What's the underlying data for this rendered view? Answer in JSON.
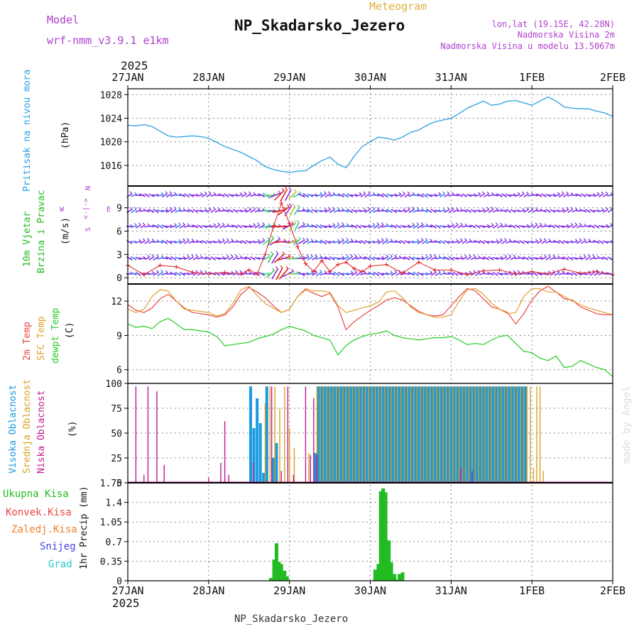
{
  "header": {
    "model_label": "Model",
    "model_name": "wrf-nmm_v3.9.1  e1km",
    "meteogram_label": "Meteogram",
    "station_title": "NP_Skadarsko_Jezero",
    "coords": "lon,lat (19.15E, 42.28N)",
    "elevation": "Nadmorska Visina 2m",
    "model_elevation": "Nadmorska Visina u modelu 13.5067m",
    "watermark": "made by Angel",
    "footer_station": "NP_Skadarsko_Jezero"
  },
  "colors": {
    "pressure": "#2aa0e0",
    "wind_label": "#22bb22",
    "temp_2m": "#ee4444",
    "temp_sfc": "#e0a030",
    "dewpoint": "#22cc22",
    "cloud_high": "#1a9ae0",
    "cloud_mid": "#d8a020",
    "cloud_low": "#c01890",
    "precip_total": "#22bb22",
    "gust_marker": "#e02020",
    "compass": "#b040d0",
    "grid": "#888888",
    "header_purple": "#b040d0",
    "header_gold": "#e0b040"
  },
  "time_axis": {
    "year": "2025",
    "ticks": [
      "27JAN",
      "28JAN",
      "29JAN",
      "30JAN",
      "31JAN",
      "1FEB",
      "2FEB"
    ]
  },
  "chart_data": [
    {
      "type": "line",
      "name": "pressure",
      "ylabel_1": "Pritisak na nivou mora",
      "ylabel_2": "(hPa)",
      "ylim": [
        1012.5,
        1029
      ],
      "yticks": [
        1016,
        1020,
        1024,
        1028
      ],
      "x_days": [
        0,
        0.1,
        0.2,
        0.3,
        0.4,
        0.5,
        0.6,
        0.7,
        0.8,
        0.9,
        1.0,
        1.2,
        1.4,
        1.5,
        1.6,
        1.7,
        1.8,
        1.9,
        2.0,
        2.1,
        2.2,
        2.3,
        2.4,
        2.5,
        2.6,
        2.7,
        2.8,
        2.9,
        3.0,
        3.1,
        3.2,
        3.3,
        3.4,
        3.5,
        3.6,
        3.7,
        3.8,
        4.0,
        4.1,
        4.2,
        4.3,
        4.4,
        4.5,
        4.6,
        4.7,
        4.8,
        4.9,
        5.0,
        5.1,
        5.2,
        5.3,
        5.4,
        5.5,
        5.6,
        5.7,
        5.8,
        5.9,
        6.0
      ],
      "values": [
        1022.8,
        1022.7,
        1022.9,
        1022.6,
        1021.8,
        1021,
        1020.8,
        1020.9,
        1021,
        1020.9,
        1020.6,
        1019.2,
        1018.2,
        1017.5,
        1016.8,
        1015.8,
        1015.3,
        1015,
        1014.8,
        1015,
        1015.1,
        1016,
        1016.8,
        1017.4,
        1016.2,
        1015.6,
        1017.5,
        1019.2,
        1020,
        1020.8,
        1020.6,
        1020.3,
        1020.8,
        1021.6,
        1022,
        1022.8,
        1023.4,
        1024,
        1024.8,
        1025.7,
        1026.3,
        1026.9,
        1026.2,
        1026.4,
        1026.9,
        1027,
        1026.6,
        1026.2,
        1026.9,
        1027.6,
        1026.9,
        1025.9,
        1025.7,
        1025.6,
        1025.6,
        1025.2,
        1024.9,
        1024.3
      ]
    },
    {
      "type": "scatter",
      "name": "wind",
      "ylabel_1": "10m Vjetar",
      "ylabel_2": "Brzina i Pravac",
      "ylabel_3": "(m/s)",
      "compass": {
        "n": "N",
        "s": "S",
        "e": "E",
        "w": "W",
        "arrows": "<-|->"
      },
      "ylim": [
        -0.8,
        11.8
      ],
      "yticks": [
        0,
        3,
        6,
        9
      ],
      "barb_rows": [
        0.5,
        2.5,
        4.6,
        6.6,
        8.6,
        10.6
      ],
      "speed_x_days": [
        0,
        0.2,
        0.4,
        0.6,
        0.8,
        1.0,
        1.2,
        1.4,
        1.5,
        1.6,
        1.7,
        1.8,
        1.9,
        2.0,
        2.1,
        2.2,
        2.3,
        2.4,
        2.5,
        2.6,
        2.7,
        2.8,
        2.9,
        3.0,
        3.2,
        3.4,
        3.6,
        3.8,
        4.0,
        4.2,
        4.4,
        4.6,
        4.8,
        5.0,
        5.2,
        5.4,
        5.6,
        5.8,
        6.0
      ],
      "speed_values": [
        1.6,
        0.4,
        1.6,
        1.4,
        0.7,
        0.5,
        0.7,
        0.5,
        1.0,
        0.5,
        3.0,
        6.5,
        9.6,
        7.0,
        4.0,
        1.8,
        0.8,
        2.2,
        0.8,
        1.7,
        2.0,
        1.2,
        0.8,
        1.5,
        1.7,
        0.6,
        2.0,
        1.0,
        1.0,
        0.4,
        0.9,
        1.0,
        0.5,
        0.8,
        0.5,
        1.1,
        0.6,
        0.8,
        0.4
      ]
    },
    {
      "type": "line",
      "name": "temperature",
      "ylabel_1": "2m Temp",
      "ylabel_2": "SFC Temp",
      "ylabel_3": "dewpt Temp",
      "ylabel_4": "(C)",
      "ylim": [
        4.8,
        13.5
      ],
      "yticks": [
        6,
        9,
        12
      ],
      "x_days": [
        0,
        0.1,
        0.2,
        0.3,
        0.4,
        0.5,
        0.6,
        0.7,
        0.8,
        0.9,
        1.0,
        1.1,
        1.2,
        1.3,
        1.4,
        1.5,
        1.6,
        1.7,
        1.8,
        1.9,
        2.0,
        2.1,
        2.2,
        2.3,
        2.4,
        2.5,
        2.6,
        2.7,
        2.8,
        2.9,
        3.0,
        3.1,
        3.2,
        3.3,
        3.4,
        3.5,
        3.6,
        3.7,
        3.8,
        3.9,
        4.0,
        4.1,
        4.2,
        4.3,
        4.4,
        4.5,
        4.6,
        4.7,
        4.8,
        4.9,
        5.0,
        5.1,
        5.2,
        5.3,
        5.4,
        5.5,
        5.6,
        5.7,
        5.8,
        5.9,
        6.0
      ],
      "series": [
        {
          "name": "2m Temp",
          "values": [
            11.7,
            11.2,
            11.0,
            11.4,
            12.2,
            12.6,
            12.0,
            11.4,
            11.0,
            10.9,
            10.8,
            10.6,
            10.8,
            11.5,
            12.6,
            13.2,
            12.8,
            12.3,
            11.6,
            11.0,
            11.3,
            12.4,
            13.0,
            12.7,
            12.4,
            12.7,
            11.5,
            9.5,
            10.2,
            10.7,
            11.2,
            11.6,
            12.1,
            12.3,
            12.1,
            11.6,
            11.1,
            10.8,
            10.7,
            10.8,
            11.6,
            12.4,
            13.1,
            12.9,
            12.2,
            11.5,
            11.3,
            11.0,
            10.0,
            10.9,
            12.1,
            12.9,
            13.3,
            12.8,
            12.2,
            12.1,
            11.5,
            11.2,
            10.9,
            10.8,
            10.8
          ]
        },
        {
          "name": "SFC Temp",
          "values": [
            11.3,
            11.0,
            11.3,
            12.4,
            13.0,
            12.9,
            12.0,
            11.3,
            11.2,
            11.1,
            11.0,
            10.7,
            10.9,
            11.8,
            13.0,
            13.3,
            12.5,
            11.8,
            11.4,
            11.0,
            11.3,
            12.4,
            13.1,
            12.9,
            12.9,
            12.8,
            11.6,
            11.0,
            11.2,
            11.4,
            11.6,
            11.9,
            12.8,
            12.9,
            12.3,
            11.5,
            11.0,
            10.8,
            10.6,
            10.6,
            10.8,
            12.0,
            13.0,
            13.1,
            12.6,
            11.8,
            11.3,
            10.9,
            11.0,
            12.4,
            13.1,
            13.1,
            12.8,
            12.8,
            12.4,
            12.0,
            11.7,
            11.4,
            11.2,
            11.0,
            10.8
          ]
        },
        {
          "name": "dewpt Temp",
          "values": [
            10.0,
            9.7,
            9.8,
            9.6,
            10.2,
            10.5,
            10.0,
            9.5,
            9.5,
            9.4,
            9.3,
            8.9,
            8.1,
            8.2,
            8.3,
            8.4,
            8.7,
            8.9,
            9.1,
            9.5,
            9.8,
            9.6,
            9.4,
            9.0,
            8.8,
            8.6,
            7.3,
            8.1,
            8.6,
            8.9,
            9.1,
            9.2,
            9.4,
            9.0,
            8.8,
            8.7,
            8.6,
            8.7,
            8.8,
            8.8,
            8.9,
            8.6,
            8.2,
            8.3,
            8.2,
            8.6,
            8.9,
            9.0,
            8.3,
            7.6,
            7.5,
            7.0,
            6.8,
            7.2,
            6.2,
            6.3,
            6.8,
            6.5,
            6.2,
            6.0,
            5.4
          ]
        }
      ]
    },
    {
      "type": "bar",
      "name": "clouds",
      "ylabel_1": "Visoka Oblacnost",
      "ylabel_2": "Srednja Oblacnost",
      "ylabel_3": "Niska Oblacnost",
      "ylabel_4": "(%)",
      "ylim": [
        0,
        100
      ],
      "yticks": [
        0,
        25,
        50,
        75,
        100
      ],
      "series": [
        {
          "name": "Visoka Oblacnost",
          "x_days": [
            1.52,
            1.56,
            1.6,
            1.64,
            1.68,
            1.72,
            1.8,
            1.84,
            2.32,
            2.36,
            2.4,
            2.44,
            2.48,
            2.52,
            2.56,
            2.6,
            2.64,
            2.68,
            2.72,
            2.76,
            2.8,
            2.84,
            2.88,
            2.92,
            2.96,
            3.0,
            3.04,
            3.08,
            3.12,
            3.16,
            3.2,
            3.24,
            3.28,
            3.32,
            3.36,
            3.4,
            3.44,
            3.48,
            3.52,
            3.56,
            3.6,
            3.64,
            3.68,
            3.72,
            3.76,
            3.8,
            3.84,
            3.88,
            3.92,
            3.96,
            4.0,
            4.04,
            4.08,
            4.12,
            4.16,
            4.2,
            4.24,
            4.28,
            4.32,
            4.36,
            4.4,
            4.44,
            4.48,
            4.52,
            4.56,
            4.6,
            4.64,
            4.68,
            4.72,
            4.76,
            4.8,
            4.84,
            4.88,
            4.92
          ],
          "values": [
            97,
            55,
            85,
            60,
            10,
            97,
            25,
            40,
            30,
            97,
            97,
            97,
            97,
            97,
            97,
            97,
            97,
            97,
            97,
            97,
            97,
            97,
            97,
            97,
            97,
            97,
            97,
            97,
            97,
            97,
            97,
            97,
            97,
            97,
            97,
            97,
            97,
            97,
            97,
            97,
            97,
            97,
            97,
            97,
            97,
            97,
            97,
            97,
            97,
            97,
            97,
            97,
            97,
            97,
            97,
            97,
            97,
            97,
            97,
            97,
            97,
            97,
            97,
            97,
            97,
            97,
            97,
            97,
            97,
            97,
            97,
            97,
            97,
            97
          ]
        },
        {
          "name": "Srednja Oblacnost",
          "x_days": [
            1.7,
            1.76,
            1.82,
            1.88,
            1.94,
            2.0,
            2.06,
            2.24,
            2.34,
            2.38,
            2.42,
            2.46,
            2.5,
            2.54,
            2.58,
            2.62,
            2.66,
            2.7,
            2.74,
            2.78,
            2.82,
            2.86,
            2.9,
            2.94,
            2.98,
            3.02,
            3.06,
            3.1,
            3.14,
            3.18,
            3.22,
            3.26,
            3.3,
            3.34,
            3.38,
            3.42,
            3.46,
            3.5,
            3.54,
            3.58,
            3.62,
            3.66,
            3.7,
            3.74,
            3.78,
            3.82,
            3.86,
            3.9,
            3.94,
            3.98,
            4.02,
            4.06,
            4.1,
            4.14,
            4.18,
            4.22,
            4.26,
            4.3,
            4.34,
            4.38,
            4.42,
            4.46,
            4.5,
            4.54,
            4.58,
            4.62,
            4.66,
            4.7,
            4.74,
            4.78,
            4.82,
            4.86,
            4.9,
            4.94,
            4.98,
            5.02,
            5.06,
            5.1,
            5.14
          ],
          "values": [
            80,
            97,
            97,
            75,
            97,
            55,
            35,
            30,
            97,
            97,
            97,
            97,
            97,
            97,
            97,
            97,
            97,
            97,
            97,
            97,
            97,
            97,
            97,
            97,
            97,
            97,
            97,
            97,
            97,
            97,
            97,
            97,
            97,
            97,
            97,
            97,
            97,
            97,
            97,
            97,
            97,
            97,
            97,
            97,
            97,
            97,
            97,
            97,
            97,
            97,
            97,
            97,
            97,
            97,
            97,
            97,
            97,
            97,
            97,
            97,
            97,
            97,
            97,
            97,
            97,
            97,
            97,
            97,
            97,
            97,
            97,
            97,
            97,
            97,
            97,
            15,
            97,
            97,
            12
          ]
        },
        {
          "name": "Niska Oblacnost",
          "x_days": [
            0.1,
            0.2,
            0.25,
            0.36,
            0.45,
            1.0,
            1.15,
            1.2,
            1.25,
            1.55,
            1.78,
            1.9,
            1.98,
            2.05,
            2.2,
            2.26,
            2.3,
            2.34,
            4.12,
            4.26
          ],
          "values": [
            97,
            8,
            97,
            92,
            18,
            5,
            20,
            62,
            8,
            20,
            97,
            12,
            97,
            8,
            97,
            28,
            85,
            28,
            15,
            12
          ]
        }
      ]
    },
    {
      "type": "bar",
      "name": "precip",
      "ylabel_1": "1hr Precip (mm)",
      "legend": [
        "Ukupna Kisa",
        "Konvek.Kisa",
        "Zaledj.Kisa",
        "Snijeg",
        "Grad"
      ],
      "ylim": [
        0,
        1.75
      ],
      "yticks": [
        "0",
        "0.35",
        "0.7",
        "1.05",
        "1.4",
        "1.75"
      ],
      "yticks_values": [
        0,
        0.35,
        0.7,
        1.05,
        1.4,
        1.75
      ],
      "x_days": [
        1.77,
        1.81,
        1.84,
        1.87,
        1.9,
        1.94,
        1.97,
        3.06,
        3.1,
        3.13,
        3.16,
        3.19,
        3.23,
        3.26,
        3.3,
        3.33,
        3.36,
        3.4
      ],
      "values": [
        0.05,
        0.38,
        0.67,
        0.34,
        0.3,
        0.18,
        0.08,
        0.2,
        0.3,
        1.6,
        1.65,
        1.58,
        0.72,
        0.33,
        0.12,
        0.02,
        0.12,
        0.15
      ]
    }
  ]
}
